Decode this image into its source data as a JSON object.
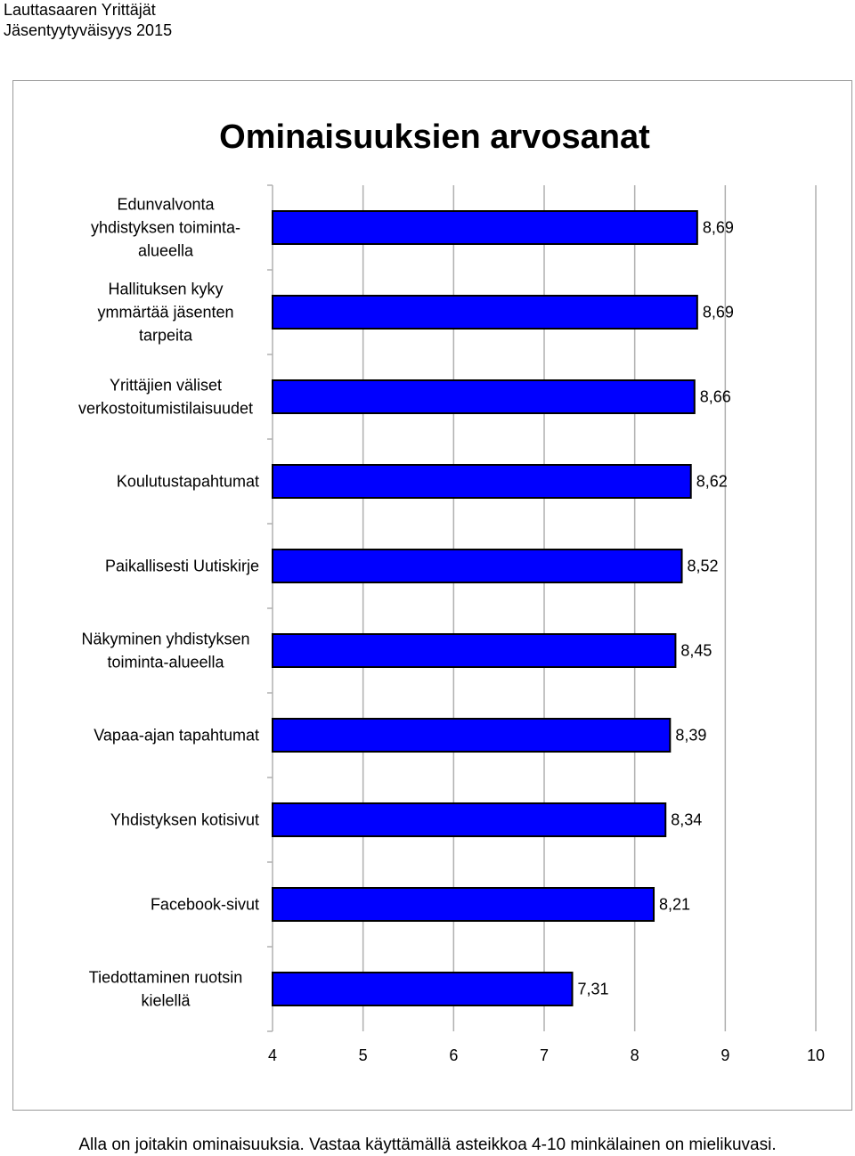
{
  "header": {
    "line1": "Lauttasaaren Yrittäjät",
    "line2": "Jäsentyytyväisyys 2015"
  },
  "footer": {
    "text": "Alla on joitakin ominaisuuksia. Vastaa käyttämällä asteikkoa 4-10 minkälainen on mielikuvasi."
  },
  "chart_data": {
    "type": "bar",
    "orientation": "horizontal",
    "title": "Ominaisuuksien arvosanat",
    "xlabel": "",
    "ylabel": "",
    "xlim": [
      4,
      10
    ],
    "ticks": [
      "4",
      "5",
      "6",
      "7",
      "8",
      "9",
      "10"
    ],
    "grid": true,
    "legend": "none",
    "bar_color": "#0000ff",
    "categories": [
      [
        "Edunvalvonta",
        "yhdistyksen toiminta-",
        "alueella"
      ],
      [
        "Hallituksen kyky",
        "ymmärtää jäsenten",
        "tarpeita"
      ],
      [
        "Yrittäjien väliset",
        "verkostoitumistilaisuudet"
      ],
      [
        "Koulutustapahtumat"
      ],
      [
        "Paikallisesti Uutiskirje"
      ],
      [
        "Näkyminen yhdistyksen",
        "toiminta-alueella"
      ],
      [
        "Vapaa-ajan tapahtumat"
      ],
      [
        "Yhdistyksen kotisivut"
      ],
      [
        "Facebook-sivut"
      ],
      [
        "Tiedottaminen ruotsin",
        "kielellä"
      ]
    ],
    "values": [
      8.69,
      8.69,
      8.66,
      8.62,
      8.52,
      8.45,
      8.39,
      8.34,
      8.21,
      7.31
    ],
    "value_labels": [
      "8,69",
      "8,69",
      "8,66",
      "8,62",
      "8,52",
      "8,45",
      "8,39",
      "8,34",
      "8,21",
      "7,31"
    ]
  }
}
